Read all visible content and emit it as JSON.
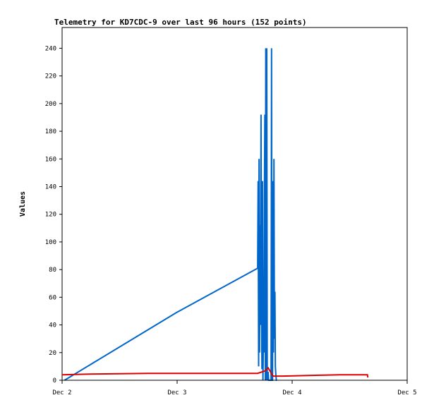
{
  "chart_data": {
    "type": "line",
    "title": "Telemetry for KD7CDC-9 over last 96 hours (152 points)",
    "xlabel": "",
    "ylabel": "Values",
    "grid": false,
    "legend": "none",
    "x_ticks": [
      "Dec 2",
      "Dec 3",
      "Dec 4",
      "Dec 5"
    ],
    "x_ticks_hours": [
      0,
      24,
      48,
      72
    ],
    "xlim_hours": [
      0,
      72
    ],
    "ylim": [
      0,
      255
    ],
    "y_ticks": [
      0,
      20,
      40,
      60,
      80,
      100,
      120,
      140,
      160,
      180,
      200,
      220,
      240
    ],
    "series": [
      {
        "color": "#0066cc",
        "points": [
          [
            0.5,
            0
          ],
          [
            23.9,
            49
          ],
          [
            40.8,
            81
          ],
          [
            40.9,
            144
          ],
          [
            41.0,
            10
          ],
          [
            41.1,
            160
          ],
          [
            41.2,
            20
          ],
          [
            41.3,
            112
          ],
          [
            41.4,
            40
          ],
          [
            41.5,
            192
          ],
          [
            41.6,
            64
          ],
          [
            41.7,
            8
          ],
          [
            41.8,
            144
          ],
          [
            41.9,
            0
          ],
          [
            42.0,
            30
          ],
          [
            42.1,
            20
          ],
          [
            42.2,
            128
          ],
          [
            42.3,
            192
          ],
          [
            42.4,
            0
          ],
          [
            42.5,
            240
          ],
          [
            42.6,
            0
          ],
          [
            42.7,
            240
          ],
          [
            42.8,
            2
          ],
          [
            42.9,
            0
          ],
          [
            43.0,
            6
          ],
          [
            43.1,
            0
          ],
          [
            43.3,
            0
          ],
          [
            43.4,
            0
          ],
          [
            43.5,
            0
          ],
          [
            43.6,
            0
          ],
          [
            43.7,
            240
          ],
          [
            43.8,
            0
          ],
          [
            43.9,
            0
          ],
          [
            44.0,
            144
          ],
          [
            44.1,
            20
          ],
          [
            44.2,
            160
          ],
          [
            44.3,
            30
          ],
          [
            44.4,
            64
          ],
          [
            44.5,
            10
          ],
          [
            44.6,
            4
          ],
          [
            44.7,
            0
          ],
          [
            44.8,
            0
          ]
        ]
      },
      {
        "color": "#dd0000",
        "points": [
          [
            0,
            4
          ],
          [
            6,
            4.5
          ],
          [
            18,
            5
          ],
          [
            30,
            5
          ],
          [
            40.8,
            5
          ],
          [
            42.5,
            7
          ],
          [
            43.0,
            9
          ],
          [
            43.5,
            6
          ],
          [
            44.0,
            3
          ],
          [
            46,
            3
          ],
          [
            52,
            3.5
          ],
          [
            58,
            4
          ],
          [
            63.7,
            4
          ],
          [
            63.8,
            2
          ]
        ]
      },
      {
        "color": "#000000",
        "points": [
          [
            0,
            0
          ],
          [
            63.8,
            0
          ]
        ]
      }
    ]
  }
}
